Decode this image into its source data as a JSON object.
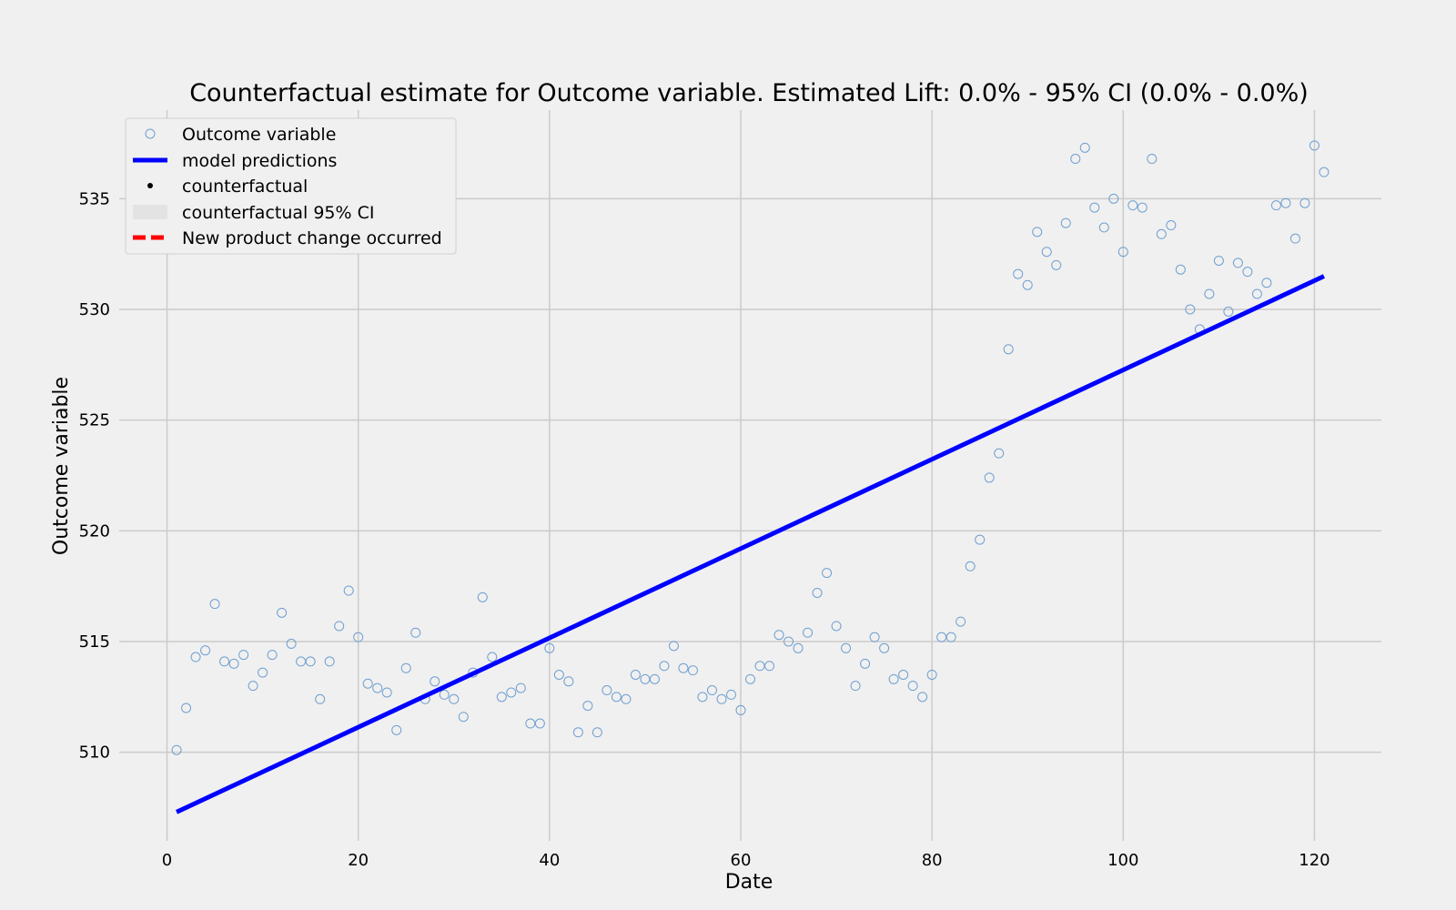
{
  "chart_data": {
    "type": "scatter",
    "title": "Counterfactual estimate for Outcome variable. Estimated Lift: 0.0% - 95% CI (0.0% - 0.0%)",
    "xlabel": "Date",
    "ylabel": "Outcome variable",
    "xlim": [
      -5,
      127
    ],
    "ylim": [
      506,
      539
    ],
    "xticks": [
      0,
      20,
      40,
      60,
      80,
      100,
      120
    ],
    "yticks": [
      510,
      515,
      520,
      525,
      530,
      535
    ],
    "grid": true,
    "legend_position": "top-left",
    "legend": [
      {
        "label": "Outcome variable",
        "kind": "open-circle",
        "color": "#6f9fd0"
      },
      {
        "label": "model predictions",
        "kind": "line",
        "color": "#0000ff"
      },
      {
        "label": "counterfactual",
        "kind": "dot",
        "color": "#000000"
      },
      {
        "label": "counterfactual 95% CI",
        "kind": "band",
        "color": "#e3e3e3"
      },
      {
        "label": "New product change occurred",
        "kind": "dashed-line",
        "color": "#ff0000"
      }
    ],
    "series": [
      {
        "name": "Outcome variable",
        "x": [
          1,
          2,
          3,
          4,
          5,
          6,
          7,
          8,
          9,
          10,
          11,
          12,
          13,
          14,
          15,
          16,
          17,
          18,
          19,
          20,
          21,
          22,
          23,
          24,
          25,
          26,
          27,
          28,
          29,
          30,
          31,
          32,
          33,
          34,
          35,
          36,
          37,
          38,
          39,
          40,
          41,
          42,
          43,
          44,
          45,
          46,
          47,
          48,
          49,
          50,
          51,
          52,
          53,
          54,
          55,
          56,
          57,
          58,
          59,
          60,
          61,
          62,
          63,
          64,
          65,
          66,
          67,
          68,
          69,
          70,
          71,
          72,
          73,
          74,
          75,
          76,
          77,
          78,
          79,
          80,
          81,
          82,
          83,
          84,
          85,
          86,
          87,
          88,
          89,
          90,
          91,
          92,
          93,
          94,
          95,
          96,
          97,
          98,
          99,
          100,
          101,
          102,
          103,
          104,
          105,
          106,
          107,
          108,
          109,
          110,
          111,
          112,
          113,
          114,
          115,
          116,
          117,
          118,
          119,
          120,
          121
        ],
        "y": [
          510.1,
          512.0,
          514.3,
          514.6,
          516.7,
          514.1,
          514.0,
          514.4,
          513.0,
          513.6,
          514.4,
          516.3,
          514.9,
          514.1,
          514.1,
          512.4,
          514.1,
          515.7,
          517.3,
          515.2,
          513.1,
          512.9,
          512.7,
          511.0,
          513.8,
          515.4,
          512.4,
          513.2,
          512.6,
          512.4,
          511.6,
          513.6,
          517.0,
          514.3,
          512.5,
          512.7,
          512.9,
          511.3,
          511.3,
          514.7,
          513.5,
          513.2,
          510.9,
          512.1,
          510.9,
          512.8,
          512.5,
          512.4,
          513.5,
          513.3,
          513.3,
          513.9,
          514.8,
          513.8,
          513.7,
          512.5,
          512.8,
          512.4,
          512.6,
          511.9,
          513.3,
          513.9,
          513.9,
          515.3,
          515.0,
          514.7,
          515.4,
          517.2,
          518.1,
          515.7,
          514.7,
          513.0,
          514.0,
          515.2,
          514.7,
          513.3,
          513.5,
          513.0,
          512.5,
          513.5,
          515.2,
          515.2,
          515.9,
          518.4,
          519.6,
          522.4,
          523.5,
          528.2,
          531.6,
          531.1,
          533.5,
          532.6,
          532.0,
          533.9,
          536.8,
          537.3,
          534.6,
          533.7,
          535.0,
          532.6,
          534.7,
          534.6,
          536.8,
          533.4,
          533.8,
          531.8,
          530.0,
          529.1,
          530.7,
          532.2,
          529.9,
          532.1,
          531.7,
          530.7,
          531.2,
          534.7,
          534.8,
          533.2,
          534.8,
          537.4,
          536.2
        ]
      },
      {
        "name": "model predictions",
        "x": [
          1,
          121
        ],
        "y": [
          507.3,
          531.5
        ]
      }
    ]
  }
}
